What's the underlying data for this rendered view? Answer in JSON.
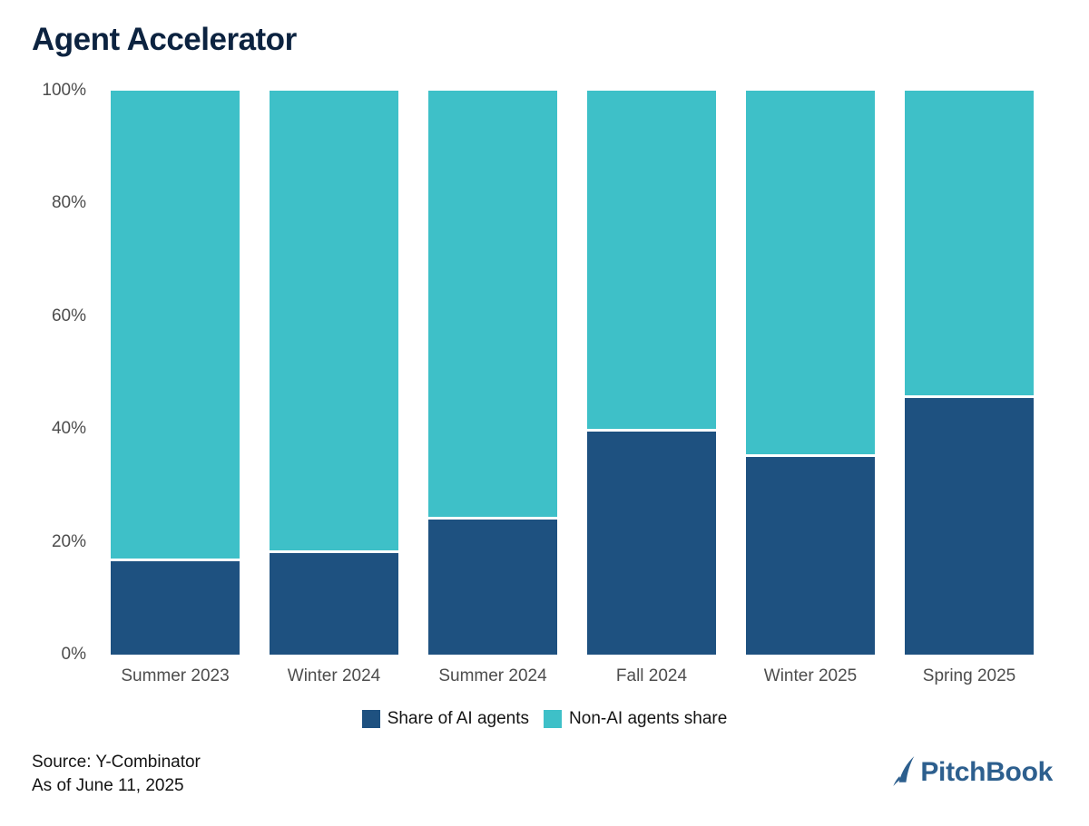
{
  "page": {
    "title": "Agent Accelerator",
    "source_line1": "Source: Y-Combinator",
    "source_line2": "As of June 11, 2025",
    "brand": "PitchBook"
  },
  "colors": {
    "title_navy": "#0c2340",
    "ai_navy": "#1e5180",
    "non_ai_teal": "#3ec0c8",
    "axis_text": "#4d4d4d",
    "legend_text": "#141414",
    "brand_blue": "#2d5f8e"
  },
  "icons": {
    "pitchbook_sail": "sail-icon"
  },
  "chart_data": {
    "type": "bar",
    "stacked": true,
    "title": "Agent Accelerator",
    "categories": [
      "Summer 2023",
      "Winter 2024",
      "Summer 2024",
      "Fall 2024",
      "Winter 2025",
      "Spring 2025"
    ],
    "series": [
      {
        "name": "Share of AI agents",
        "color": "#1e5180",
        "values": [
          17,
          18.5,
          24.5,
          40,
          35.5,
          46
        ]
      },
      {
        "name": "Non-AI agents share",
        "color": "#3ec0c8",
        "values": [
          83,
          81.5,
          75.5,
          60,
          64.5,
          54
        ]
      }
    ],
    "xlabel": "",
    "ylabel": "",
    "ylim": [
      0,
      100
    ],
    "yticks": [
      0,
      20,
      40,
      60,
      80,
      100
    ],
    "ytick_suffix": "%",
    "grid": false,
    "legend_position": "bottom"
  }
}
